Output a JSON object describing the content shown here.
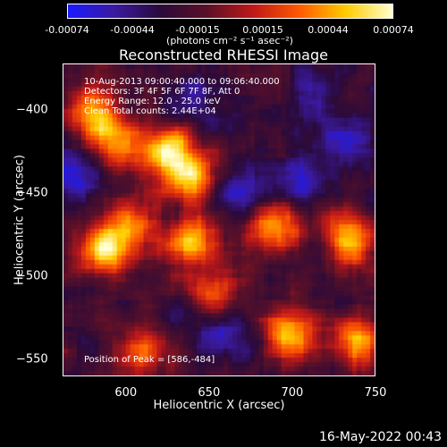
{
  "colorbar": {
    "tick_labels": [
      "-0.00074",
      "-0.00044",
      "-0.00015",
      "0.00015",
      "0.00044",
      "0.00074"
    ],
    "units": "(photons cm⁻² s⁻¹ asec⁻²)",
    "colors": [
      "#1a1aff",
      "#3a1aa0",
      "#2a0a3a",
      "#5a1028",
      "#c01818",
      "#ff5a00",
      "#ffcc00",
      "#ffffd0"
    ]
  },
  "title": "Reconstructed RHESSI Image",
  "info_lines": [
    "10-Aug-2013 09:00:40.000 to 09:06:40.000",
    "Detectors: 3F 4F 5F 6F 7F 8F, Att 0",
    "Energy Range: 12.0 - 25.0 keV",
    "Clean     Total counts: 2.44E+04"
  ],
  "peak_text": "Position of Peak = [586,-484]",
  "chart_data": {
    "type": "heatmap",
    "title": "Reconstructed RHESSI Image",
    "xlabel": "Heliocentric X (arcsec)",
    "ylabel": "Heliocentric Y (arcsec)",
    "xlim": [
      562,
      750
    ],
    "ylim": [
      -560,
      -372
    ],
    "x_ticks": [
      600,
      650,
      700,
      750
    ],
    "y_ticks": [
      -400,
      -450,
      -500,
      -550
    ],
    "x_tick_labels": [
      "600",
      "650",
      "700",
      "750"
    ],
    "y_tick_labels": [
      "−400",
      "−450",
      "−500",
      "−550"
    ],
    "value_range": [
      -0.00074,
      0.00074
    ],
    "peak_position": [
      586,
      -484
    ],
    "bright_sources": [
      {
        "x": 580,
        "y": -400,
        "level": 0.85
      },
      {
        "x": 595,
        "y": -420,
        "level": 0.75
      },
      {
        "x": 625,
        "y": -425,
        "level": 0.95
      },
      {
        "x": 640,
        "y": -440,
        "level": 0.9
      },
      {
        "x": 586,
        "y": -484,
        "level": 1.0
      },
      {
        "x": 640,
        "y": -480,
        "level": 0.85
      },
      {
        "x": 605,
        "y": -470,
        "level": 0.6
      },
      {
        "x": 690,
        "y": -470,
        "level": 0.75
      },
      {
        "x": 735,
        "y": -480,
        "level": 0.8
      },
      {
        "x": 655,
        "y": -510,
        "level": 0.55
      },
      {
        "x": 700,
        "y": -535,
        "level": 0.9
      },
      {
        "x": 740,
        "y": -540,
        "level": 0.8
      },
      {
        "x": 610,
        "y": -545,
        "level": 0.55
      }
    ],
    "dark_sources": [
      {
        "x": 570,
        "y": -440,
        "level": 0.85
      },
      {
        "x": 665,
        "y": -450,
        "level": 0.7
      },
      {
        "x": 700,
        "y": -440,
        "level": 0.75
      },
      {
        "x": 735,
        "y": -420,
        "level": 0.65
      },
      {
        "x": 640,
        "y": -395,
        "level": 0.5
      },
      {
        "x": 715,
        "y": -395,
        "level": 0.6
      },
      {
        "x": 660,
        "y": -535,
        "level": 0.55
      }
    ]
  },
  "timestamp": "16-May-2022 00:43"
}
